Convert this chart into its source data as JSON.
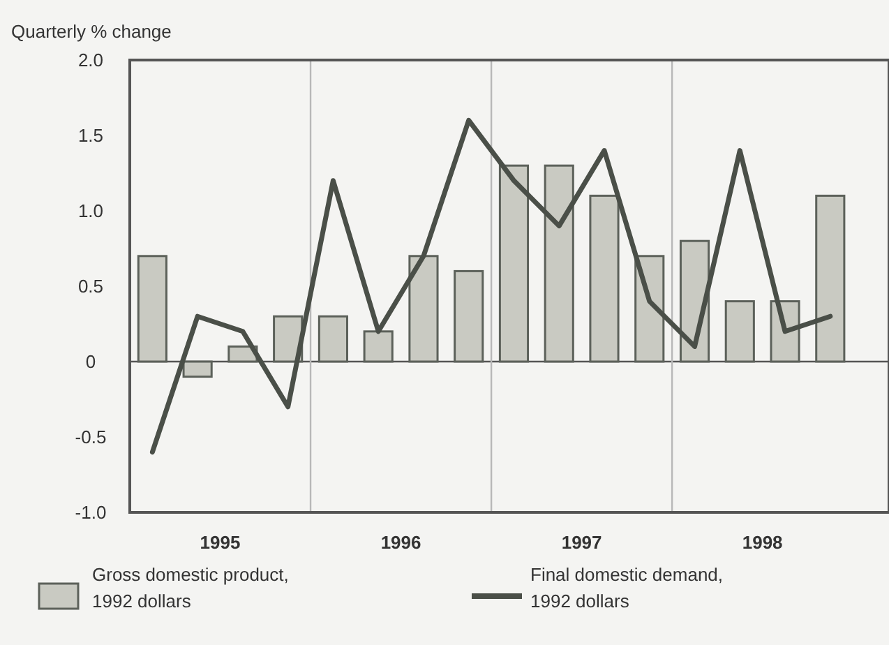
{
  "chart_data": {
    "type": "bar",
    "ylabel": "Quarterly % change",
    "x": [
      1995.125,
      1995.375,
      1995.625,
      1995.875,
      1996.125,
      1996.375,
      1996.625,
      1996.875,
      1997.125,
      1997.375,
      1997.625,
      1997.875,
      1998.125,
      1998.375,
      1998.625,
      1998.875
    ],
    "xlim": [
      1995,
      1999.2
    ],
    "xticks": [
      {
        "value": 1995.5,
        "label": "1995"
      },
      {
        "value": 1996.5,
        "label": "1996"
      },
      {
        "value": 1997.5,
        "label": "1997"
      },
      {
        "value": 1998.5,
        "label": "1998"
      }
    ],
    "ylim": [
      -1,
      2
    ],
    "yticks": [
      {
        "value": -1,
        "label": "-1.0"
      },
      {
        "value": -0.5,
        "label": "-0.5"
      },
      0,
      {
        "value": 0.5,
        "label": "0.5"
      },
      {
        "value": 1,
        "label": "1.0"
      },
      {
        "value": 1.5,
        "label": "1.5"
      },
      {
        "value": 2,
        "label": "2.0"
      }
    ],
    "series": [
      {
        "name": "Gross domestic product, 1992 dollars",
        "color": "#c9cac2",
        "values": [
          0.7,
          -0.1,
          0.1,
          0.3,
          0.3,
          0.2,
          0.7,
          0.6,
          1.3,
          1.3,
          1.1,
          0.7,
          0.8,
          0.4,
          0.4,
          1.1
        ]
      },
      {
        "name": "Final domestic demand, 1992 dollars",
        "type": "line",
        "color": "#4a4f48",
        "values": [
          -0.6,
          0.3,
          0.2,
          -0.3,
          1.2,
          0.2,
          0.7,
          1.6,
          1.2,
          0.9,
          1.4,
          0.4,
          0.1,
          1.4,
          0.2,
          0.3
        ]
      }
    ],
    "ref_lines": [
      {
        "axis": "y",
        "value": 0,
        "color": "#555555"
      },
      {
        "axis": "x",
        "value": 1996,
        "color": "#b8b8b8"
      },
      {
        "axis": "x",
        "value": 1997,
        "color": "#b8b8b8"
      },
      {
        "axis": "x",
        "value": 1998,
        "color": "#b8b8b8"
      }
    ],
    "legend": "bottom",
    "grid": false,
    "marker": "none",
    "line_style": "solid"
  }
}
